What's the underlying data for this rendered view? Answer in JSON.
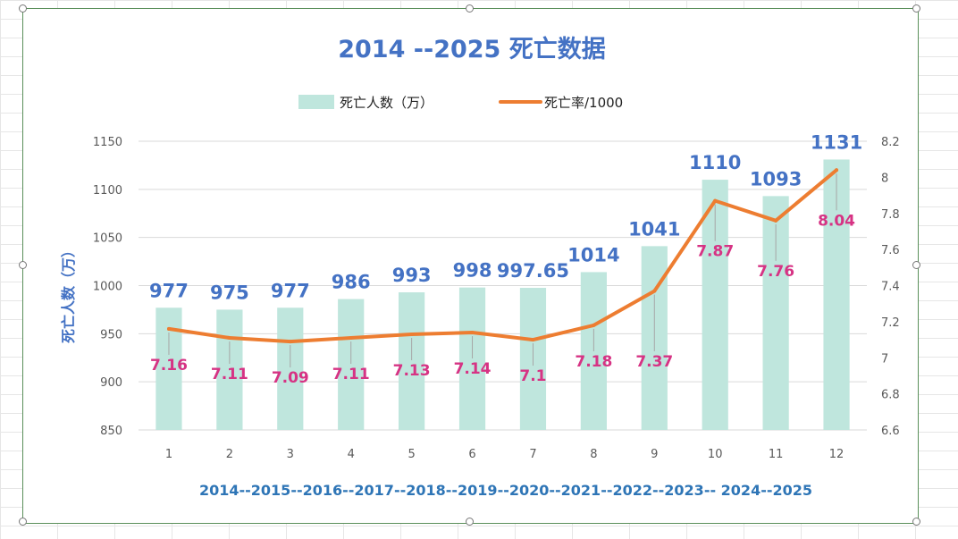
{
  "chart_data": {
    "type": "bar",
    "title": "2014 --2025  死亡数据",
    "categories": [
      "1",
      "2",
      "3",
      "4",
      "5",
      "6",
      "7",
      "8",
      "9",
      "10",
      "11",
      "12"
    ],
    "period_label": "2014--2015--2016--2017--2018--2019--2020--2021--2022--2023-- 2024--2025",
    "ylabel": "死亡人数（万）",
    "ylim": [
      850,
      1150
    ],
    "y_ticks": [
      850,
      900,
      950,
      1000,
      1050,
      1100,
      1150
    ],
    "y2lim": [
      6.6,
      8.2
    ],
    "y2_ticks": [
      "6.6",
      "6.8",
      "7",
      "7.2",
      "7.4",
      "7.6",
      "7.8",
      "8",
      "8.2"
    ],
    "grid": true,
    "legend_position": "top",
    "series": [
      {
        "name": "死亡人数（万）",
        "type": "bar",
        "axis": "left",
        "color": "#bfe6dd",
        "values": [
          977,
          975,
          977,
          986,
          993,
          998,
          997.65,
          1014,
          1041,
          1110,
          1093,
          1131
        ],
        "labels": [
          "977",
          "975",
          "977",
          "986",
          "993",
          "998",
          "997.65",
          "1014",
          "1041",
          "1110",
          "1093",
          "1131"
        ]
      },
      {
        "name": "死亡率/1000",
        "type": "line",
        "axis": "right",
        "color": "#ed7d31",
        "values": [
          7.16,
          7.11,
          7.09,
          7.11,
          7.13,
          7.14,
          7.1,
          7.18,
          7.37,
          7.87,
          7.76,
          8.04
        ],
        "labels": [
          "7.16",
          "7.11",
          "7.09",
          "7.11",
          "7.13",
          "7.14",
          "7.1",
          "7.18",
          "7.37",
          "7.87",
          "7.76",
          "8.04"
        ]
      }
    ]
  }
}
